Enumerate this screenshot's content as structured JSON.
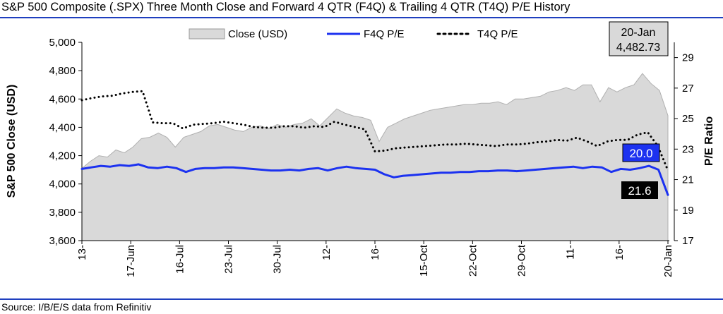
{
  "title": "S&P 500 Composite (.SPX) Three Month Close and Forward 4 QTR (F4Q) & Trailing 4 QTR (T4Q) P/E History",
  "source": "Source: I/B/E/S data from Refinitiv",
  "colors": {
    "close_fill": "#d9d9d9",
    "f4q_line": "#1c32f0",
    "t4q_line": "#000000",
    "rule": "#1f3fbf",
    "f4q_label_bg": "#1c32f0",
    "t4q_label_bg": "#000000"
  },
  "chart_data": {
    "type": "area",
    "ylabel": "S&P 500 Close (USD)",
    "y2label": "P/E Ratio",
    "ylim": [
      3600,
      5000
    ],
    "y2lim": [
      17,
      30
    ],
    "yticks": [
      "3,600",
      "3,800",
      "4,000",
      "4,200",
      "4,400",
      "4,600",
      "4,800",
      "5,000"
    ],
    "yticks_values": [
      3600,
      3800,
      4000,
      4200,
      4400,
      4600,
      4800,
      5000
    ],
    "y2ticks": [
      "17",
      "19",
      "21",
      "23",
      "25",
      "27",
      "29"
    ],
    "y2ticks_values": [
      17,
      19,
      21,
      23,
      25,
      27,
      29
    ],
    "xticks": [
      "13-",
      "17-Jun",
      "16-Jul",
      "23-Jul",
      "30-Jul",
      "12-",
      "16-",
      "15-Oct",
      "22-Oct",
      "29-Oct",
      "11-",
      "16-",
      "20-Jan"
    ],
    "legend": [
      "Close (USD)",
      "F4Q P/E",
      "T4Q P/E"
    ],
    "annotation": {
      "date": "20-Jan",
      "value": "4,482.73"
    },
    "end_labels": {
      "f4q": "20.0",
      "t4q": "21.6"
    },
    "series": [
      {
        "name": "Close (USD)",
        "values": [
          4110,
          4160,
          4200,
          4190,
          4240,
          4220,
          4260,
          4320,
          4330,
          4360,
          4330,
          4260,
          4330,
          4350,
          4370,
          4410,
          4420,
          4400,
          4380,
          4370,
          4400,
          4410,
          4390,
          4420,
          4400,
          4420,
          4430,
          4460,
          4410,
          4470,
          4530,
          4500,
          4480,
          4470,
          4450,
          4300,
          4400,
          4430,
          4460,
          4480,
          4500,
          4520,
          4530,
          4540,
          4550,
          4560,
          4560,
          4570,
          4570,
          4580,
          4560,
          4600,
          4600,
          4610,
          4620,
          4650,
          4660,
          4680,
          4660,
          4700,
          4700,
          4580,
          4680,
          4650,
          4680,
          4700,
          4780,
          4710,
          4660,
          4482.73
        ]
      },
      {
        "name": "F4Q P/E",
        "values": [
          21.7,
          21.8,
          21.9,
          21.85,
          21.95,
          21.9,
          22.0,
          21.8,
          21.75,
          21.85,
          21.75,
          21.5,
          21.7,
          21.75,
          21.75,
          21.8,
          21.8,
          21.75,
          21.7,
          21.65,
          21.6,
          21.6,
          21.65,
          21.6,
          21.7,
          21.75,
          21.6,
          21.75,
          21.85,
          21.75,
          21.7,
          21.65,
          21.35,
          21.15,
          21.25,
          21.3,
          21.35,
          21.4,
          21.45,
          21.45,
          21.5,
          21.5,
          21.55,
          21.55,
          21.6,
          21.6,
          21.55,
          21.6,
          21.65,
          21.7,
          21.75,
          21.8,
          21.85,
          21.75,
          21.85,
          21.8,
          21.5,
          21.7,
          21.65,
          21.75,
          21.9,
          21.65,
          20.0
        ]
      },
      {
        "name": "T4Q P/E",
        "values": [
          26.2,
          26.35,
          26.45,
          26.5,
          26.65,
          26.75,
          26.8,
          24.75,
          24.7,
          24.7,
          24.35,
          24.6,
          24.65,
          24.7,
          24.8,
          24.7,
          24.6,
          24.45,
          24.4,
          24.4,
          24.5,
          24.5,
          24.4,
          24.5,
          24.45,
          24.8,
          24.6,
          24.45,
          24.3,
          22.85,
          22.9,
          23.05,
          23.1,
          23.15,
          23.2,
          23.25,
          23.3,
          23.3,
          23.35,
          23.3,
          23.25,
          23.2,
          23.3,
          23.3,
          23.35,
          23.45,
          23.5,
          23.6,
          23.55,
          23.75,
          23.5,
          23.2,
          23.5,
          23.6,
          23.6,
          23.95,
          24.1,
          23.2,
          21.6
        ]
      }
    ]
  }
}
